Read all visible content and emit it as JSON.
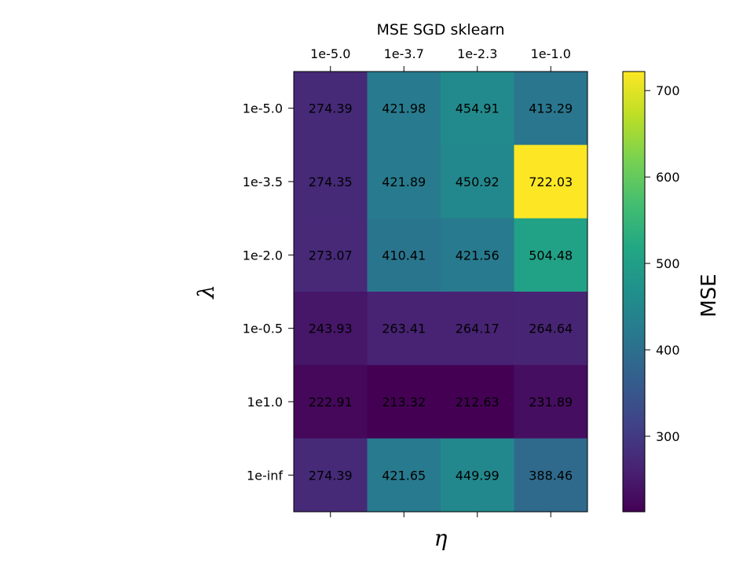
{
  "chart_data": {
    "type": "heatmap",
    "title": "MSE SGD sklearn",
    "xlabel": "η",
    "ylabel": "λ",
    "x_categories": [
      "1e-5.0",
      "1e-3.7",
      "1e-2.3",
      "1e-1.0"
    ],
    "y_categories": [
      "1e-5.0",
      "1e-3.5",
      "1e-2.0",
      "1e-0.5",
      "1e1.0",
      "1e-inf"
    ],
    "values": [
      [
        274.39,
        421.98,
        454.91,
        413.29
      ],
      [
        274.35,
        421.89,
        450.92,
        722.03
      ],
      [
        273.07,
        410.41,
        421.56,
        504.48
      ],
      [
        243.93,
        263.41,
        264.17,
        264.64
      ],
      [
        222.91,
        213.32,
        212.63,
        231.89
      ],
      [
        274.39,
        421.65,
        449.99,
        388.46
      ]
    ],
    "colormap": "viridis",
    "vmin": 212.63,
    "vmax": 722.03,
    "colorbar": {
      "label": "MSE",
      "ticks": [
        300,
        400,
        500,
        600,
        700
      ],
      "tick_labels": [
        "300",
        "400",
        "500",
        "600",
        "700"
      ]
    }
  }
}
